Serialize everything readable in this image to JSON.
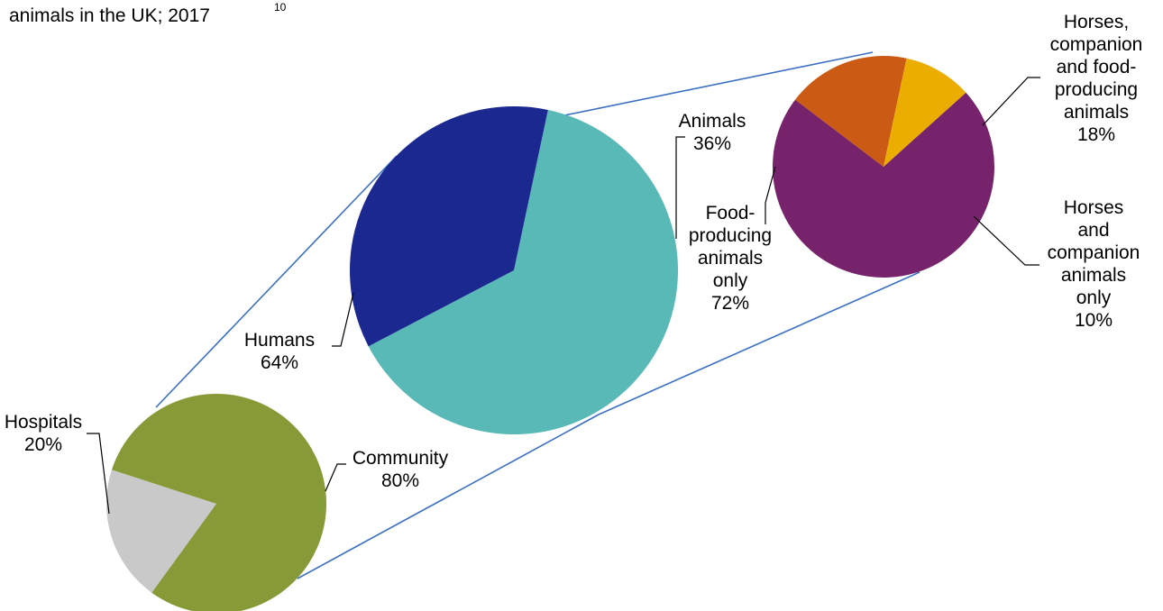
{
  "title": {
    "text": "animals in the UK; 2017",
    "superscript": "10"
  },
  "chart_data": [
    {
      "type": "pie",
      "slices": [
        {
          "label_lines": [
            "Hospitals",
            "20%"
          ],
          "value": 20,
          "color": "#c9c9c9"
        },
        {
          "label_lines": [
            "Community",
            "80%"
          ],
          "value": 80,
          "color": "#879a38"
        }
      ]
    },
    {
      "type": "pie",
      "slices": [
        {
          "label_lines": [
            "Humans",
            "64%"
          ],
          "value": 64,
          "color": "#59b9b7"
        },
        {
          "label_lines": [
            "Animals",
            "36%"
          ],
          "value": 36,
          "color": "#1b2890"
        }
      ]
    },
    {
      "type": "pie",
      "slices": [
        {
          "label_lines": [
            "Food-",
            "producing",
            "animals",
            "only",
            "72%"
          ],
          "value": 72,
          "color": "#77236c"
        },
        {
          "label_lines": [
            "Horses,",
            "companion",
            "and food-",
            "producing",
            "animals",
            "18%"
          ],
          "value": 18,
          "color": "#cb5a14"
        },
        {
          "label_lines": [
            "Horses",
            "and",
            "companion",
            "animals",
            "only",
            "10%"
          ],
          "value": 10,
          "color": "#ebad00"
        }
      ]
    }
  ],
  "colors": {
    "connector": "#3a6fc4",
    "text": "#000000"
  }
}
